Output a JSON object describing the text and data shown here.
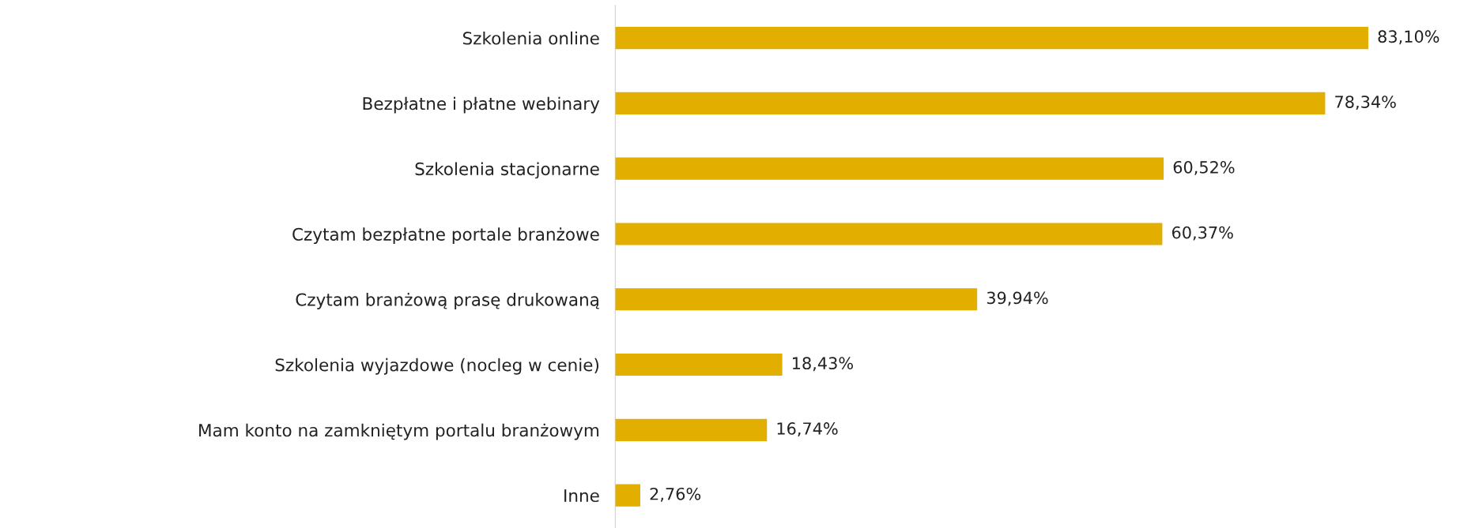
{
  "chart_data": {
    "type": "bar",
    "orientation": "horizontal",
    "categories": [
      "Szkolenia online",
      "Bezpłatne i płatne webinary",
      "Szkolenia stacjonarne",
      "Czytam bezpłatne portale branżowe",
      "Czytam branżową prasę drukowaną",
      "Szkolenia wyjazdowe (nocleg w cenie)",
      "Mam konto na zamkniętym portalu branżowym",
      "Inne"
    ],
    "values": [
      83.1,
      78.34,
      60.52,
      60.37,
      39.94,
      18.43,
      16.74,
      2.76
    ],
    "value_labels": [
      "83,10%",
      "78,34%",
      "60,52%",
      "60,37%",
      "39,94%",
      "18,43%",
      "16,74%",
      "2,76%"
    ],
    "color": "#e2ae00",
    "grid": false,
    "legend": false
  }
}
